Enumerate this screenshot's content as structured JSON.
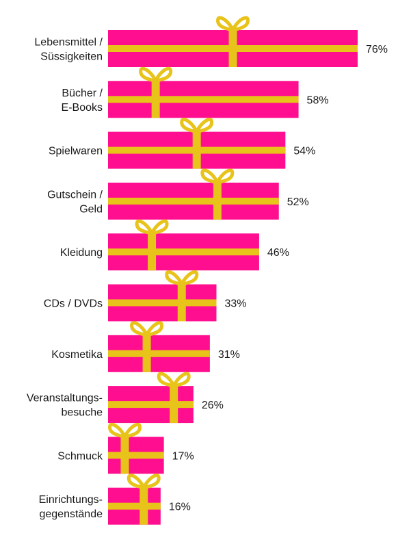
{
  "colors": {
    "box": "#ff0f8f",
    "ribbon": "#e8c31a",
    "text": "#1a1a1a",
    "background": "#ffffff"
  },
  "chart_data": {
    "type": "bar",
    "orientation": "horizontal",
    "value_suffix": "%",
    "categories": [
      "Lebensmittel / Süssigkeiten",
      "Bücher / E-Books",
      "Spielwaren",
      "Gutschein / Geld",
      "Kleidung",
      "CDs / DVDs",
      "Kosmetika",
      "Veranstaltungs-besuche",
      "Schmuck",
      "Einrichtungs-gegenstände"
    ],
    "category_label_lines": [
      [
        "Lebensmittel /",
        "Süssigkeiten"
      ],
      [
        "Bücher /",
        "E-Books"
      ],
      [
        "Spielwaren"
      ],
      [
        "Gutschein /",
        "Geld"
      ],
      [
        "Kleidung"
      ],
      [
        "CDs / DVDs"
      ],
      [
        "Kosmetika"
      ],
      [
        "Veranstaltungs-",
        "besuche"
      ],
      [
        "Schmuck"
      ],
      [
        "Einrichtungs-",
        "gegenstände"
      ]
    ],
    "values": [
      76,
      58,
      54,
      52,
      46,
      33,
      31,
      26,
      17,
      16
    ],
    "value_labels": [
      "76%",
      "58%",
      "54%",
      "52%",
      "46%",
      "33%",
      "31%",
      "26%",
      "17%",
      "16%"
    ],
    "xlim": [
      0,
      76
    ],
    "grid": false,
    "legend": "none"
  }
}
